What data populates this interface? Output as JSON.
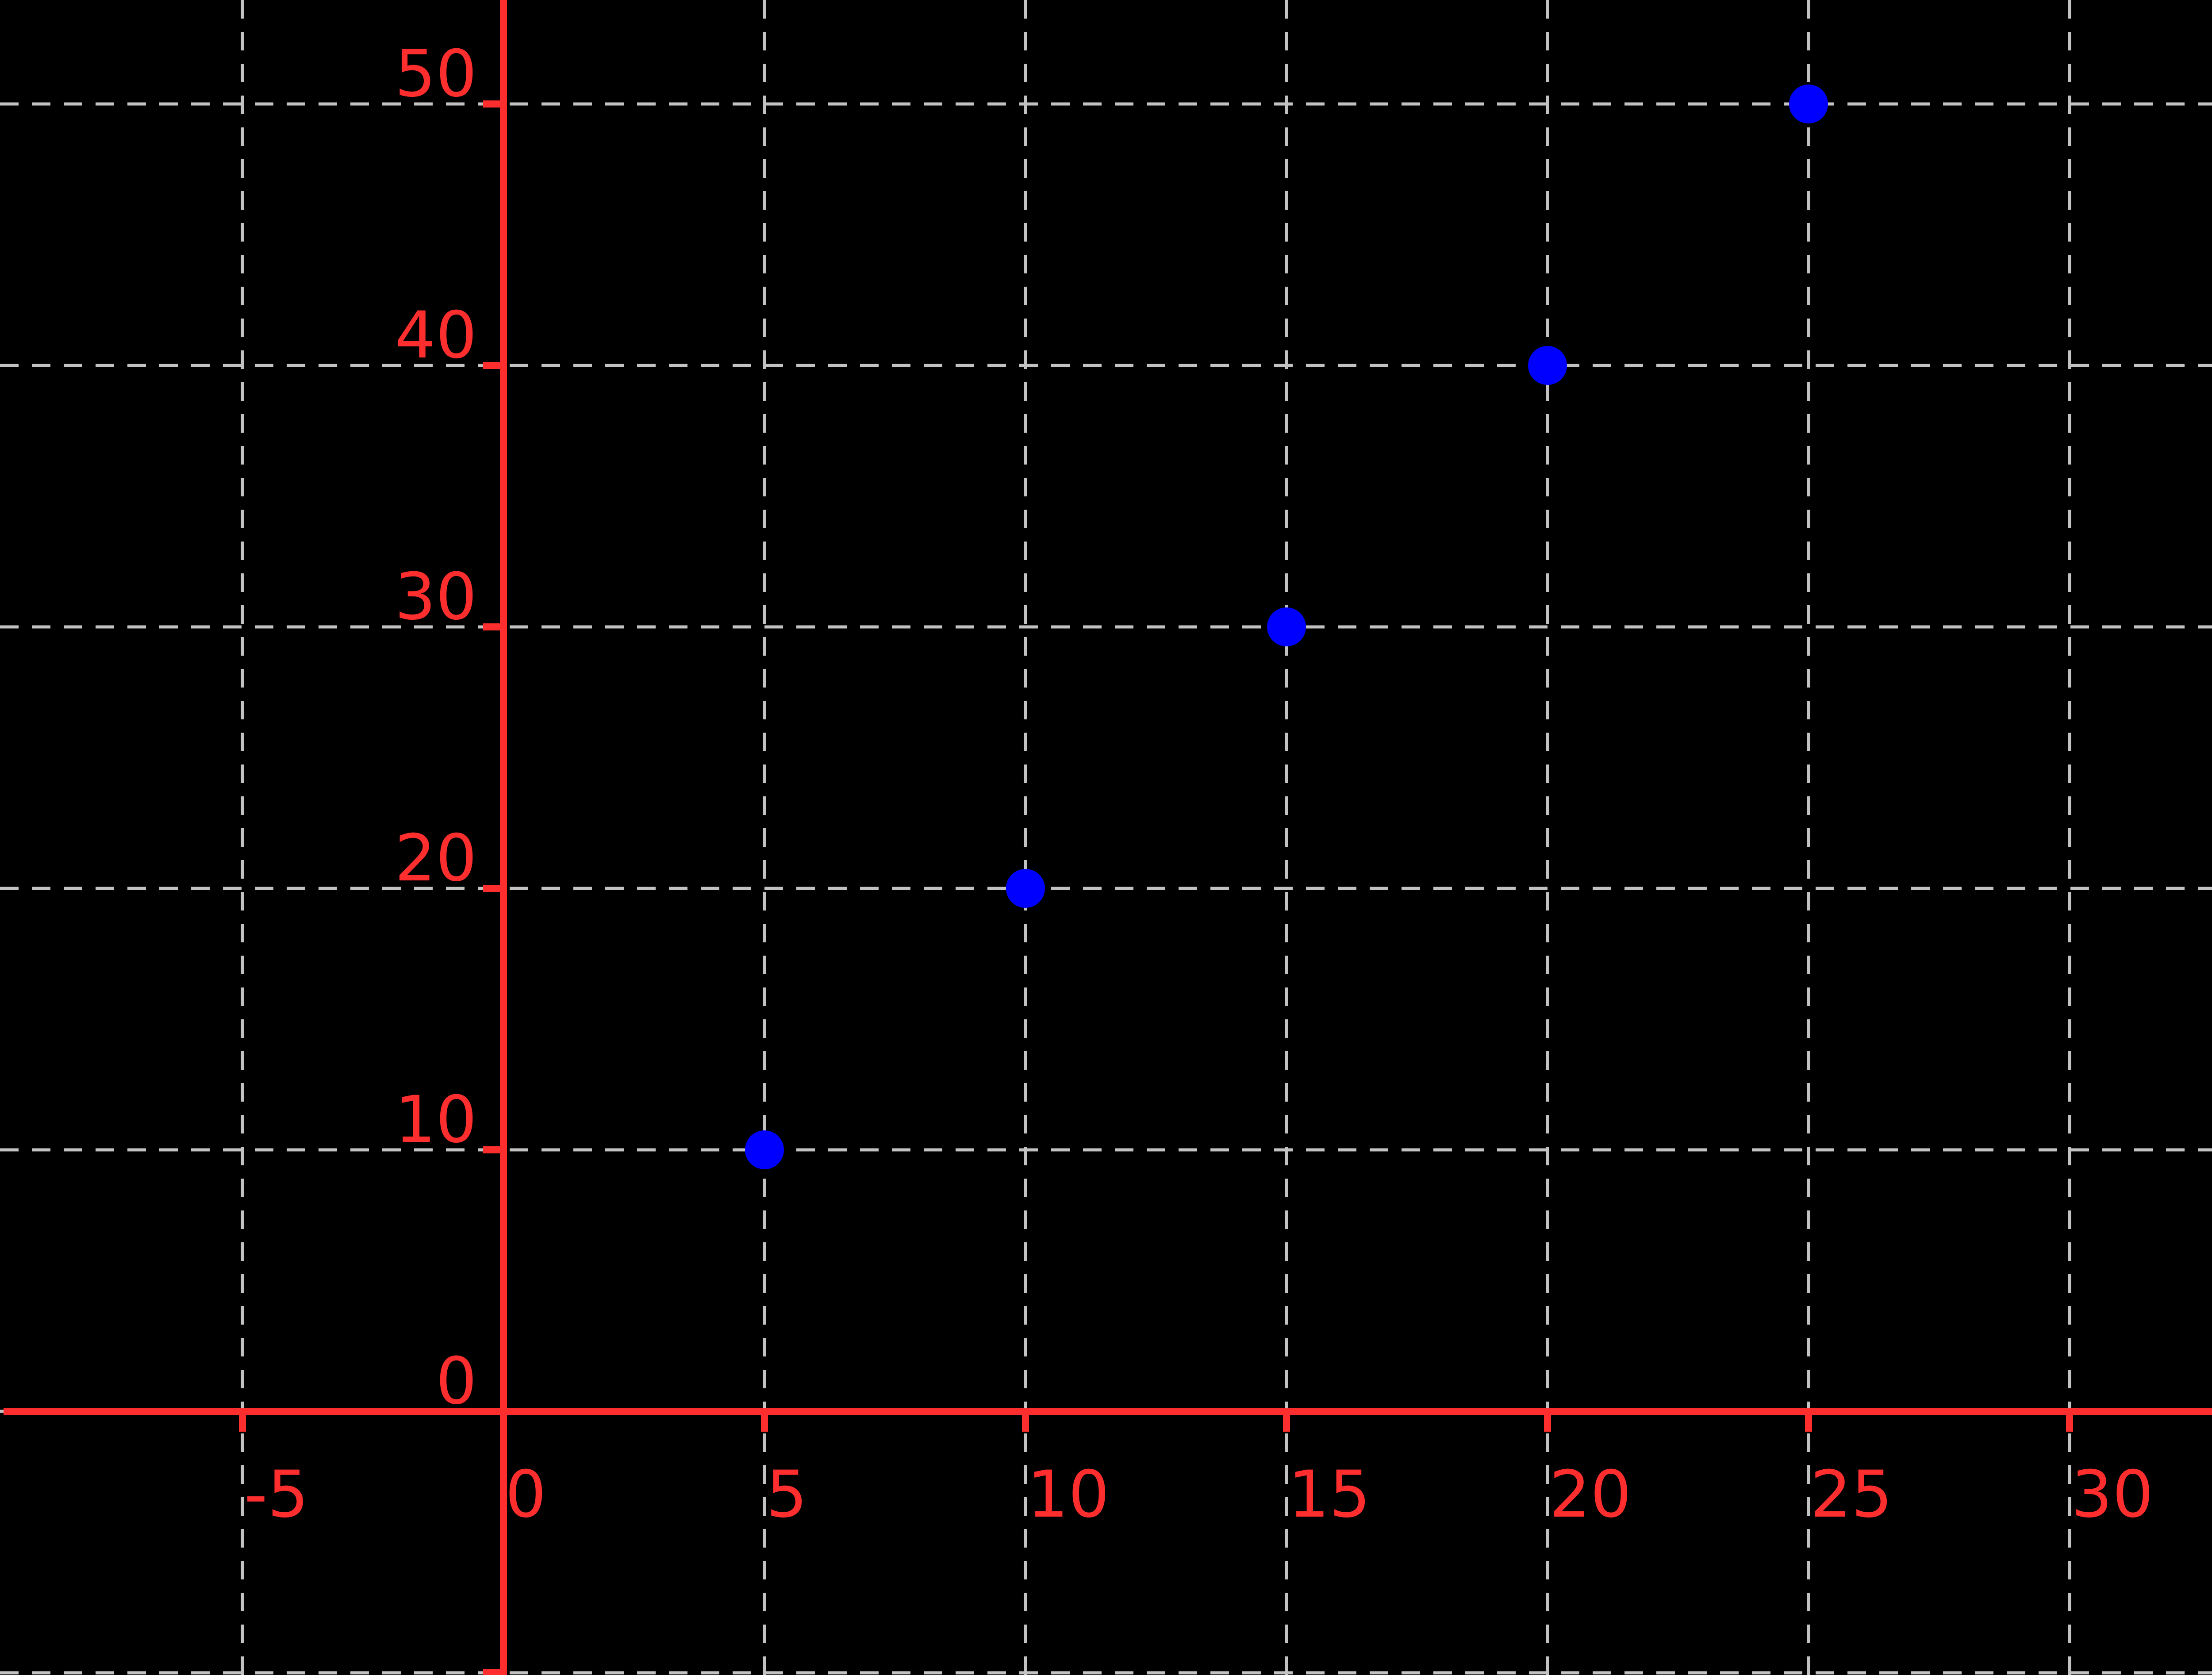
{
  "chart_data": {
    "type": "scatter",
    "title": "",
    "xlabel": "",
    "ylabel": "",
    "legend_position": "none",
    "grid": "dashed",
    "points": [
      {
        "x": 5,
        "y": 10
      },
      {
        "x": 10,
        "y": 20
      },
      {
        "x": 15,
        "y": 30
      },
      {
        "x": 20,
        "y": 40
      },
      {
        "x": 25,
        "y": 50
      }
    ],
    "x_ticks": {
      "values": [
        -5,
        0,
        5,
        10,
        15,
        20,
        25,
        30
      ],
      "labels": [
        "-5",
        "0",
        "5",
        "10",
        "15",
        "20",
        "25",
        "30"
      ]
    },
    "y_ticks": {
      "values": [
        0,
        10,
        20,
        30,
        40,
        50
      ],
      "labels": [
        "0",
        "10",
        "20",
        "30",
        "40",
        "50"
      ]
    },
    "x_gridlines": [
      -5,
      0,
      5,
      10,
      15,
      20,
      25,
      30
    ],
    "y_gridlines": [
      -10,
      0,
      10,
      20,
      30,
      40,
      50
    ],
    "x_tick_marks": [
      -5,
      5,
      10,
      15,
      20,
      25,
      30
    ],
    "y_tick_marks": [
      -10,
      10,
      20,
      30,
      40,
      50
    ],
    "xlim": [
      -9.6,
      34.5
    ],
    "ylim": [
      -10.1,
      54.0
    ],
    "marker": "circle",
    "colors": {
      "background": "#000000",
      "axis": "#ff2e2e",
      "tick_label": "#ff2e2e",
      "grid": "#c2c2c2",
      "point": "#0000ff"
    }
  }
}
